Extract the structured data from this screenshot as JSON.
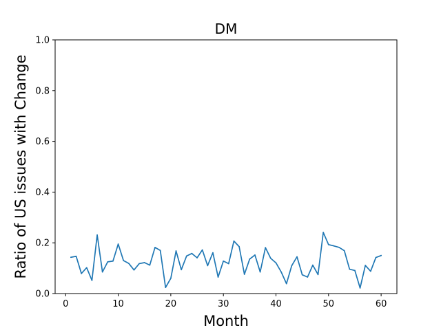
{
  "chart_data": {
    "type": "line",
    "title": "DM",
    "xlabel": "Month",
    "ylabel": "Ratio of US issues with Change",
    "xlim": [
      -2,
      63
    ],
    "ylim": [
      0.0,
      1.0
    ],
    "x_ticks": [
      0,
      10,
      20,
      30,
      40,
      50,
      60
    ],
    "y_ticks": [
      0.0,
      0.2,
      0.4,
      0.6,
      0.8,
      1.0
    ],
    "y_tick_labels": [
      "0.0",
      "0.2",
      "0.4",
      "0.6",
      "0.8",
      "1.0"
    ],
    "grid": false,
    "series": [
      {
        "color": "#1f77b4",
        "x": [
          1,
          2,
          3,
          4,
          5,
          6,
          7,
          8,
          9,
          10,
          11,
          12,
          13,
          14,
          15,
          16,
          17,
          18,
          19,
          20,
          21,
          22,
          23,
          24,
          25,
          26,
          27,
          28,
          29,
          30,
          31,
          32,
          33,
          34,
          35,
          36,
          37,
          38,
          39,
          40,
          41,
          42,
          43,
          44,
          45,
          46,
          47,
          48,
          49,
          50,
          51,
          52,
          53,
          54,
          55,
          56,
          57,
          58,
          59,
          60
        ],
        "y": [
          0.143,
          0.147,
          0.079,
          0.102,
          0.052,
          0.231,
          0.085,
          0.125,
          0.128,
          0.195,
          0.13,
          0.119,
          0.093,
          0.118,
          0.122,
          0.112,
          0.182,
          0.17,
          0.024,
          0.06,
          0.168,
          0.094,
          0.148,
          0.158,
          0.141,
          0.172,
          0.11,
          0.161,
          0.065,
          0.128,
          0.118,
          0.207,
          0.185,
          0.076,
          0.136,
          0.152,
          0.085,
          0.181,
          0.139,
          0.121,
          0.085,
          0.039,
          0.11,
          0.145,
          0.074,
          0.065,
          0.112,
          0.075,
          0.241,
          0.193,
          0.188,
          0.182,
          0.169,
          0.096,
          0.091,
          0.022,
          0.111,
          0.088,
          0.142,
          0.15
        ]
      }
    ]
  }
}
